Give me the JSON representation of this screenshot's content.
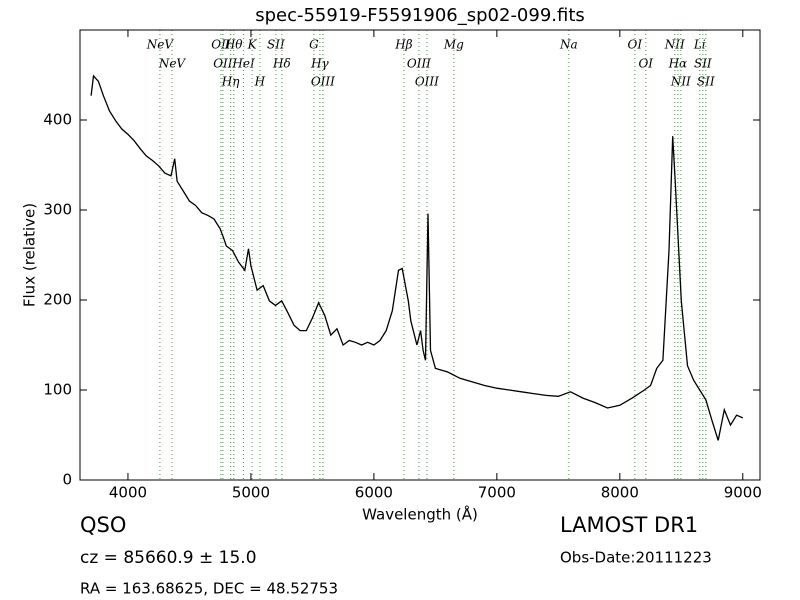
{
  "chart_data": {
    "type": "line",
    "title": "spec-55919-F5591906_sp02-099.fits",
    "x_label": "Wavelength (Å)",
    "y_label": "Flux (relative)",
    "color": "#000000",
    "line_color": "#55b055",
    "xlim": [
      3610,
      9140
    ],
    "ylim": [
      0,
      500
    ],
    "xticks": [
      4000,
      5000,
      6000,
      7000,
      8000,
      9000
    ],
    "yticks": [
      0,
      100,
      200,
      300,
      400
    ],
    "x": [
      3700,
      3720,
      3760,
      3800,
      3850,
      3900,
      3950,
      4000,
      4050,
      4100,
      4150,
      4200,
      4250,
      4300,
      4350,
      4380,
      4400,
      4450,
      4500,
      4550,
      4600,
      4650,
      4700,
      4750,
      4780,
      4800,
      4850,
      4900,
      4950,
      4980,
      5000,
      5050,
      5100,
      5150,
      5200,
      5250,
      5300,
      5350,
      5400,
      5450,
      5500,
      5550,
      5600,
      5650,
      5700,
      5750,
      5800,
      5850,
      5900,
      5950,
      6000,
      6050,
      6100,
      6150,
      6200,
      6230,
      6280,
      6300,
      6350,
      6380,
      6400,
      6420,
      6440,
      6460,
      6500,
      6600,
      6700,
      6800,
      6900,
      7000,
      7100,
      7200,
      7300,
      7400,
      7500,
      7600,
      7700,
      7800,
      7900,
      8000,
      8100,
      8200,
      8250,
      8300,
      8350,
      8400,
      8430,
      8450,
      8500,
      8550,
      8600,
      8650,
      8700,
      8750,
      8800,
      8850,
      8900,
      8950,
      9000
    ],
    "values": [
      427,
      449,
      443,
      427,
      410,
      399,
      390,
      384,
      377,
      368,
      360,
      355,
      349,
      341,
      338,
      357,
      332,
      321,
      310,
      305,
      297,
      294,
      290,
      279,
      268,
      260,
      255,
      242,
      233,
      257,
      238,
      211,
      216,
      199,
      194,
      199,
      186,
      172,
      166,
      166,
      180,
      197,
      183,
      161,
      168,
      150,
      155,
      153,
      150,
      153,
      150,
      155,
      166,
      188,
      233,
      235,
      199,
      177,
      150,
      166,
      144,
      133,
      296,
      144,
      124,
      120,
      113,
      109,
      105,
      102,
      100,
      98,
      96,
      94,
      93,
      98,
      91,
      86,
      80,
      83,
      91,
      100,
      105,
      124,
      133,
      255,
      382,
      332,
      199,
      127,
      111,
      100,
      89,
      66,
      44,
      78,
      61,
      72,
      69
    ],
    "lines": [
      {
        "x": 4260,
        "label": "NeV"
      },
      {
        "x": 4358,
        "label": "NeV"
      },
      {
        "x": 4756,
        "label": "OII"
      },
      {
        "x": 4772,
        "label": "OII"
      },
      {
        "x": 4835,
        "label": "Hη"
      },
      {
        "x": 4860,
        "label": "Hθ"
      },
      {
        "x": 4940,
        "label": "HeI"
      },
      {
        "x": 5010,
        "label": "K"
      },
      {
        "x": 5073,
        "label": "H"
      },
      {
        "x": 5203,
        "label": "SII"
      },
      {
        "x": 5252,
        "label": "Hδ"
      },
      {
        "x": 5512,
        "label": "G"
      },
      {
        "x": 5561,
        "label": "Hγ"
      },
      {
        "x": 5585,
        "label": "OIII"
      },
      {
        "x": 6244,
        "label": "Hβ"
      },
      {
        "x": 6366,
        "label": "OIII"
      },
      {
        "x": 6431,
        "label": "OIII"
      },
      {
        "x": 6650,
        "label": "Mg"
      },
      {
        "x": 7585,
        "label": "Na"
      },
      {
        "x": 8122,
        "label": "OI"
      },
      {
        "x": 8211,
        "label": "OI"
      },
      {
        "x": 8447,
        "label": "NII"
      },
      {
        "x": 8472,
        "label": "Hα"
      },
      {
        "x": 8496,
        "label": "NII"
      },
      {
        "x": 8650,
        "label": "Li"
      },
      {
        "x": 8675,
        "label": "SII"
      },
      {
        "x": 8699,
        "label": "SII"
      }
    ],
    "object_class": "QSO",
    "redshift": "cz = 85660.9 ± 15.0",
    "coordinates": "RA = 163.68625, DEC = 48.52753",
    "survey": "LAMOST DR1",
    "obs_date": "Obs-Date:20111223"
  }
}
